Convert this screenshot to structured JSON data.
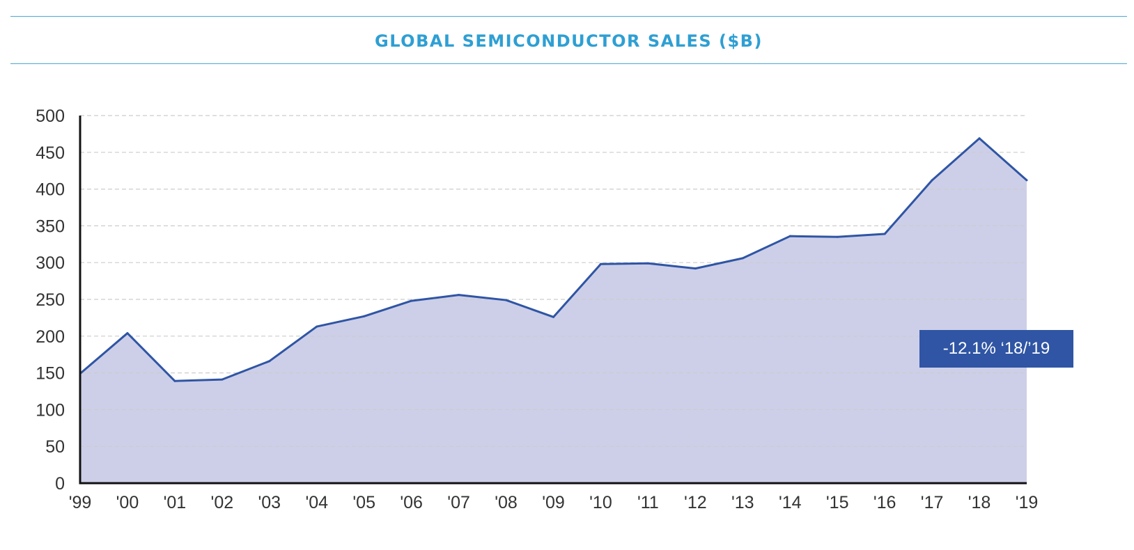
{
  "colors": {
    "title": "#2e9fd3",
    "rule": "#4aa8d6",
    "line": "#2f55a4",
    "area": "#cdcfe9",
    "grid": "#cccccc",
    "axis": "#111111",
    "callout_bg": "#2f55a4"
  },
  "chart_data": {
    "type": "area",
    "title": "GLOBAL SEMICONDUCTOR SALES ($B)",
    "xlabel": "",
    "ylabel": "",
    "categories": [
      "'99",
      "'00",
      "'01",
      "'02",
      "'03",
      "'04",
      "'05",
      "'06",
      "'07",
      "'08",
      "'09",
      "'10",
      "'11",
      "'12",
      "'13",
      "'14",
      "'15",
      "'16",
      "'17",
      "'18",
      "'19"
    ],
    "series": [
      {
        "values": [
          149,
          204,
          139,
          141,
          166,
          213,
          227,
          248,
          256,
          249,
          226,
          298,
          299,
          292,
          306,
          336,
          335,
          339,
          412,
          469,
          412
        ]
      }
    ],
    "ylim": [
      0,
      500
    ],
    "yticks": [
      0,
      50,
      100,
      150,
      200,
      250,
      300,
      350,
      400,
      450,
      500
    ],
    "grid": "horizontal-dashed",
    "legend": "none",
    "annotation": "-12.1% ‘18/’19"
  }
}
